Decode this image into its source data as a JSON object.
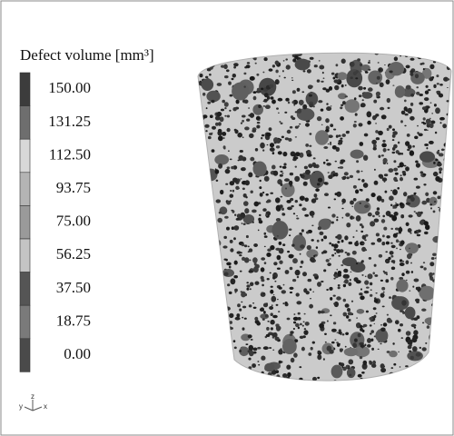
{
  "legend": {
    "title": "Defect volume [mm³]",
    "labels": [
      "150.00",
      "131.25",
      "112.50",
      "93.75",
      "75.00",
      "56.25",
      "37.50",
      "18.75",
      "0.00"
    ]
  },
  "triad": {
    "y": "y",
    "z": "z",
    "x": "x"
  }
}
